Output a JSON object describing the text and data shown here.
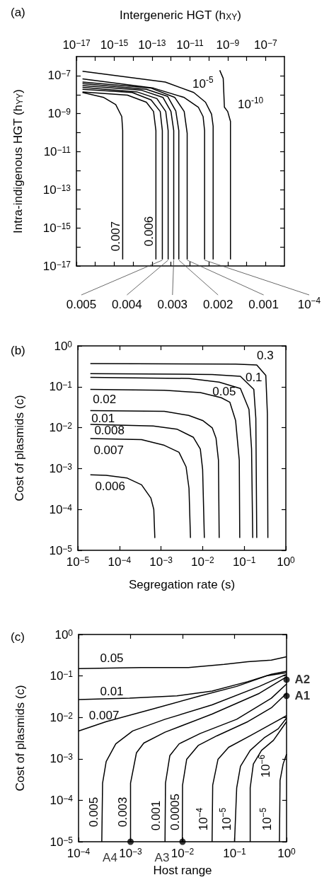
{
  "chart_data": [
    {
      "type": "line",
      "title": "(a)",
      "xlabel": "Intergeneric HGT (h$_{XY}$)",
      "ylabel": "Intra-indigenous HGT (h$_{YY}$)",
      "log": "xy",
      "color": "#000000",
      "marker": "none",
      "xlim": [
        1e-17,
        1e-06
      ],
      "ylim": [
        1e-17,
        1e-06
      ],
      "xticks": [
        {
          "value": 1e-17,
          "label": "10$^{−17}$"
        },
        {
          "value": 1e-16,
          "label": null
        },
        {
          "value": 1e-15,
          "label": "10$^{−15}$"
        },
        {
          "value": 1e-14,
          "label": null
        },
        {
          "value": 1e-13,
          "label": "10$^{−13}$"
        },
        {
          "value": 1e-12,
          "label": null
        },
        {
          "value": 1e-11,
          "label": "10$^{−11}$"
        },
        {
          "value": 1e-10,
          "label": null
        },
        {
          "value": 1e-09,
          "label": "10$^{−9}$"
        },
        {
          "value": 1e-08,
          "label": null
        },
        {
          "value": 1e-07,
          "label": "10$^{−7}$"
        }
      ],
      "yticks": [
        {
          "value": 1e-17,
          "label": "10$^{−17}$"
        },
        {
          "value": 1e-16,
          "label": null
        },
        {
          "value": 1e-15,
          "label": "10$^{−15}$"
        },
        {
          "value": 1e-14,
          "label": null
        },
        {
          "value": 1e-13,
          "label": "10$^{−13}$"
        },
        {
          "value": 1e-12,
          "label": null
        },
        {
          "value": 1e-11,
          "label": "10$^{−11}$"
        },
        {
          "value": 1e-10,
          "label": null
        },
        {
          "value": 1e-09,
          "label": "10$^{−9}$"
        },
        {
          "value": 1e-08,
          "label": null
        },
        {
          "value": 1e-07,
          "label": "10$^{−7}$"
        }
      ],
      "series": [
        {
          "x": [
            2.8e-15,
            2.8e-15,
            2.5e-15,
            1.2e-15,
            2.8e-16,
            2.1e-17
          ],
          "values": [
            2.2e-17,
            1.3e-10,
            7.1e-10,
            3e-09,
            7.1e-09,
            1.3e-08
          ]
        },
        {
          "x": [
            1.6e-13,
            1.6e-13,
            1.2e-13,
            5e-14,
            5e-15,
            2.1e-17
          ],
          "values": [
            2.2e-17,
            1.3e-10,
            1.3e-09,
            4e-09,
            9.4e-09,
            1.4e-08
          ]
        },
        {
          "x": [
            3.5e-13,
            3.5e-13,
            2.7e-13,
            8.9e-14,
            8.9e-15,
            2.1e-17
          ],
          "values": [
            2.2e-17,
            1.3e-10,
            1.3e-09,
            5.3e-09,
            1.3e-08,
            1.9e-08
          ]
        },
        {
          "x": [
            7.1e-13,
            7.1e-13,
            5.3e-13,
            1.8e-13,
            1.6e-14,
            2.1e-17
          ],
          "values": [
            2.2e-17,
            1.3e-10,
            1.3e-09,
            6.2e-09,
            1.4e-08,
            2.4e-08
          ]
        },
        {
          "x": [
            1.4e-12,
            1.4e-12,
            1e-12,
            3.8e-13,
            2.8e-14,
            2.1e-17
          ],
          "values": [
            2.2e-17,
            1.3e-10,
            1.3e-09,
            7.1e-09,
            1.7e-08,
            3e-08
          ]
        },
        {
          "x": [
            2.6e-12,
            2.6e-12,
            1.8e-12,
            6.7e-13,
            5e-14,
            2.1e-17
          ],
          "values": [
            2.2e-17,
            1.3e-10,
            1.4e-09,
            8.1e-09,
            1.9e-08,
            3.8e-08
          ]
        },
        {
          "x": [
            7.2e-12,
            7.2e-12,
            5e-12,
            1.6e-12,
            8.9e-14,
            2.1e-17
          ],
          "values": [
            2.2e-17,
            9.4e-11,
            1.3e-09,
            7.1e-09,
            2.2e-08,
            4.6e-08
          ]
        },
        {
          "x": [
            6e-11,
            6e-11,
            5e-11,
            2.8e-11,
            5e-12,
            1.2e-13,
            2.1e-17
          ],
          "values": [
            2.2e-17,
            1.3e-10,
            7.1e-10,
            2.2e-09,
            7.1e-09,
            2.2e-08,
            6.7e-08
          ]
        },
        {
          "x": [
            1.7e-10,
            1.7e-10,
            1.4e-10,
            6.7e-11,
            1.6e-11,
            5e-13,
            2.1e-17
          ],
          "values": [
            2.2e-17,
            2.2e-10,
            9.4e-10,
            4e-09,
            1.3e-08,
            4.6e-08,
            1.7e-07
          ]
        },
        {
          "x": [
            1.4e-09,
            1.4e-09,
            1e-09,
            6.7e-10,
            5.8e-10,
            3.8e-10
          ],
          "values": [
            2.2e-17,
            4e-10,
            1.3e-09,
            2.2e-09,
            7.1e-08,
            1.9e-07
          ]
        }
      ],
      "annotations": [
        {
          "text": "0.007",
          "x": 2.8e-15,
          "y": 2.2e-17
        },
        {
          "text": "0.006",
          "x": 1.6e-13,
          "y": 2.2e-17
        },
        {
          "text": "10$^{-5}$",
          "x": 1.6e-11,
          "y": 1.3e-08
        },
        {
          "text": "10$^{-10}$",
          "x": 6.7e-10,
          "y": 2.2e-09
        },
        {
          "text": "0.005",
          "x": 3.5e-13,
          "y": 2.2e-17
        },
        {
          "text": "0.004",
          "x": 7.1e-13,
          "y": 2.2e-17
        },
        {
          "text": "0.003",
          "x": 1.4e-12,
          "y": 2.2e-17
        },
        {
          "text": "0.002",
          "x": 2.6e-12,
          "y": 2.2e-17
        },
        {
          "text": "0.001",
          "x": 7.2e-12,
          "y": 2.2e-17
        },
        {
          "text": "10$^{−4}$",
          "x": 6e-11,
          "y": 2.2e-17
        }
      ]
    },
    {
      "type": "line",
      "title": "(b)",
      "xlabel": "Segregation rate (s)",
      "ylabel": "Cost of plasmids (c)",
      "log": "xy",
      "color": "#000000",
      "marker": "none",
      "xlim": [
        1e-05,
        1
      ],
      "ylim": [
        1e-05,
        1
      ],
      "xticks": [
        {
          "value": 1e-05,
          "label": "10$^{−5}$"
        },
        {
          "value": 0.0001,
          "label": "10$^{−4}$"
        },
        {
          "value": 0.001,
          "label": "10$^{−3}$"
        },
        {
          "value": 0.01,
          "label": "10$^{−2}$"
        },
        {
          "value": 0.1,
          "label": "10$^{−1}$"
        },
        {
          "value": 1,
          "label": "10$^{0}$"
        }
      ],
      "yticks": [
        {
          "value": 1e-05,
          "label": "10$^{−5}$"
        },
        {
          "value": 0.0001,
          "label": "10$^{−4}$"
        },
        {
          "value": 0.001,
          "label": "10$^{−3}$"
        },
        {
          "value": 0.01,
          "label": "10$^{−2}$"
        },
        {
          "value": 0.1,
          "label": "10$^{−1}$"
        },
        {
          "value": 1,
          "label": "10$^{0}$"
        }
      ],
      "series": [
        {
          "x": [
            2e-05,
            0.062,
            0.2,
            0.33,
            0.36,
            0.37
          ],
          "values": [
            0.37,
            0.36,
            0.34,
            0.19,
            0.022,
            2e-05
          ]
        },
        {
          "x": [
            2e-05,
            0.017,
            0.081,
            0.17,
            0.19,
            0.2
          ],
          "values": [
            0.21,
            0.2,
            0.18,
            0.086,
            0.017,
            2e-05
          ]
        },
        {
          "x": [
            2e-05,
            0.0046,
            0.025,
            0.081,
            0.13,
            0.15,
            0.16
          ],
          "values": [
            0.17,
            0.16,
            0.13,
            0.091,
            0.028,
            0.003,
            2e-05
          ]
        },
        {
          "x": [
            2e-05,
            0.0012,
            0.0088,
            0.028,
            0.045,
            0.062,
            0.076,
            0.078
          ],
          "values": [
            0.086,
            0.082,
            0.072,
            0.054,
            0.042,
            0.015,
            0.0016,
            2e-05
          ]
        },
        {
          "x": [
            2e-05,
            0.0012,
            0.0046,
            0.01,
            0.017,
            0.021,
            0.024,
            0.025
          ],
          "values": [
            0.026,
            0.025,
            0.02,
            0.015,
            0.0099,
            0.0055,
            0.0016,
            2e-05
          ]
        },
        {
          "x": [
            2e-05,
            0.00065,
            0.0024,
            0.006,
            0.0088,
            0.01,
            0.011
          ],
          "values": [
            0.012,
            0.011,
            0.0092,
            0.0058,
            0.003,
            0.00094,
            2e-05
          ]
        },
        {
          "x": [
            2e-05,
            0.00034,
            0.0012,
            0.0027,
            0.004,
            0.0047,
            0.0051
          ],
          "values": [
            0.0054,
            0.0051,
            0.0037,
            0.0025,
            0.0011,
            0.00033,
            2e-05
          ]
        },
        {
          "x": [
            2e-05,
            4.8e-05,
            0.00015,
            0.00034,
            0.00057,
            0.00067,
            0.00071
          ],
          "values": [
            0.0007,
            0.00068,
            0.00059,
            0.0004,
            0.00019,
            0.0001,
            2e-05
          ]
        }
      ],
      "annotations": [
        {
          "text": "0.3",
          "x": 0.2,
          "y": 0.34
        },
        {
          "text": "0.1",
          "x": 0.17,
          "y": 0.086
        },
        {
          "text": "0.05",
          "x": 0.025,
          "y": 0.13
        },
        {
          "text": "0.02",
          "x": 2e-05,
          "y": 0.086
        },
        {
          "text": "0.01",
          "x": 2e-05,
          "y": 0.026
        },
        {
          "text": "0.008",
          "x": 2e-05,
          "y": 0.012
        },
        {
          "text": "0.007",
          "x": 2e-05,
          "y": 0.0054
        },
        {
          "text": "0.006",
          "x": 2e-05,
          "y": 0.0007
        }
      ]
    },
    {
      "type": "line",
      "title": "(c)",
      "xlabel": "Host range",
      "ylabel": "Cost of plasmids (c)",
      "log": "xy",
      "color": "#000000",
      "marker": "none",
      "xlim": [
        0.0001,
        1
      ],
      "ylim": [
        1e-05,
        1
      ],
      "xticks": [
        {
          "value": 0.0001,
          "label": "10$^{−4}$"
        },
        {
          "value": 0.001,
          "label": "10$^{−3}$"
        },
        {
          "value": 0.01,
          "label": "10$^{−2}$"
        },
        {
          "value": 0.1,
          "label": "10$^{−1}$"
        },
        {
          "value": 1,
          "label": "10$^{0}$"
        }
      ],
      "yticks": [
        {
          "value": 1e-05,
          "label": "10$^{−5}$"
        },
        {
          "value": 0.0001,
          "label": "10$^{−4}$"
        },
        {
          "value": 0.001,
          "label": "10$^{−3}$"
        },
        {
          "value": 0.01,
          "label": "10$^{−2}$"
        },
        {
          "value": 0.1,
          "label": "10$^{−1}$"
        },
        {
          "value": 1,
          "label": "10$^{0}$"
        }
      ],
      "series": [
        {
          "x": [
            0.0001,
            0.0016,
            0.013,
            0.063,
            0.18,
            0.51,
            1
          ],
          "values": [
            0.15,
            0.16,
            0.16,
            0.19,
            0.22,
            0.24,
            0.29
          ]
        },
        {
          "x": [
            0.0001,
            0.00096,
            0.0078,
            0.037,
            0.18,
            0.51,
            1
          ],
          "values": [
            0.027,
            0.029,
            0.033,
            0.043,
            0.073,
            0.11,
            0.13
          ]
        },
        {
          "x": [
            0.0001,
            0.00034,
            0.0027,
            0.022,
            0.11,
            0.41,
            1
          ],
          "values": [
            0.0047,
            0.0079,
            0.016,
            0.033,
            0.056,
            0.1,
            0.12
          ]
        },
        {
          "x": [
            0.00028,
            0.00029,
            0.00034,
            0.00052,
            0.0011,
            0.0046,
            0.037,
            0.3,
            1
          ],
          "values": [
            1e-05,
            0.00026,
            0.00086,
            0.0023,
            0.0047,
            0.009,
            0.02,
            0.056,
            0.11
          ]
        },
        {
          "x": [
            0.001,
            0.001,
            0.0013,
            0.0018,
            0.0046,
            0.037,
            0.3,
            1
          ],
          "values": [
            1e-05,
            0.00026,
            0.0014,
            0.0024,
            0.0044,
            0.012,
            0.038,
            0.095
          ]
        },
        {
          "x": [
            0.0046,
            0.0047,
            0.0057,
            0.0086,
            0.022,
            0.11,
            0.51,
            1
          ],
          "values": [
            1e-05,
            0.00026,
            0.0012,
            0.0023,
            0.0041,
            0.009,
            0.029,
            0.064
          ]
        },
        {
          "x": [
            0.0099,
            0.01,
            0.012,
            0.02,
            0.046,
            0.18,
            0.51,
            1
          ],
          "values": [
            1e-05,
            0.00023,
            0.00097,
            0.0021,
            0.0036,
            0.0079,
            0.017,
            0.038
          ]
        },
        {
          "x": [
            0.037,
            0.038,
            0.048,
            0.077,
            0.2,
            0.51,
            1
          ],
          "values": [
            1e-05,
            0.00023,
            0.00097,
            0.0019,
            0.0036,
            0.0069,
            0.011
          ]
        },
        {
          "x": [
            0.1,
            0.11,
            0.13,
            0.2,
            0.37,
            0.69,
            1
          ],
          "values": [
            1e-05,
            0.0002,
            0.00066,
            0.0016,
            0.0032,
            0.0053,
            0.0096
          ]
        },
        {
          "x": [
            0.2,
            0.2,
            0.23,
            0.33,
            0.56,
            1
          ],
          "values": [
            1e-05,
            0.0002,
            0.00075,
            0.0016,
            0.0028,
            0.0079
          ]
        },
        {
          "x": [
            0.73,
            0.75,
            0.86,
            1
          ],
          "values": [
            1e-05,
            0.0003,
            0.00075,
            0.0013
          ]
        },
        {
          "type": "scatter",
          "marker": "circle",
          "x": [
            1,
            1,
            0.01,
            0.001
          ],
          "values": [
            0.081,
            0.033,
            1e-05,
            1e-05
          ],
          "value_labels": [
            "A2",
            "A1",
            "A3",
            "A4"
          ]
        }
      ],
      "annotations": [
        {
          "text": "0.05",
          "x": 0.0001,
          "y": 0.15
        },
        {
          "text": "0.01",
          "x": 0.0001,
          "y": 0.027
        },
        {
          "text": "0.007",
          "x": 0.00034,
          "y": 0.0079
        },
        {
          "text": "0.005",
          "x": 0.00028,
          "y": 1e-05
        },
        {
          "text": "0.003",
          "x": 0.001,
          "y": 1e-05
        },
        {
          "text": "0.001",
          "x": 0.0046,
          "y": 1e-05
        },
        {
          "text": "0.0005",
          "x": 0.0099,
          "y": 1e-05
        },
        {
          "text": "10$^{−4}$",
          "x": 0.037,
          "y": 1e-05
        },
        {
          "text": "10$^{−5}$",
          "x": 0.1,
          "y": 1e-05
        },
        {
          "text": "10$^{−5}$",
          "x": 0.73,
          "y": 1e-05
        },
        {
          "text": "10$^{−6}$",
          "x": 0.75,
          "y": 0.0003
        }
      ]
    }
  ]
}
